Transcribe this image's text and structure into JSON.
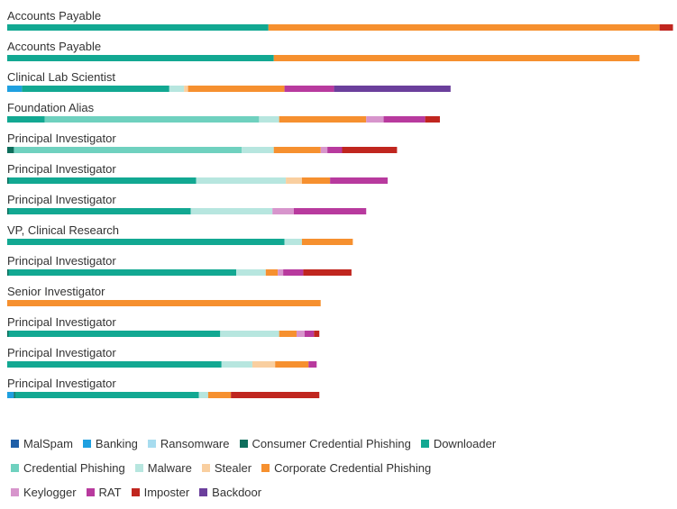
{
  "chart_data": {
    "type": "bar",
    "orientation": "horizontal",
    "stacked": true,
    "title": "",
    "xlabel": "",
    "ylabel": "",
    "xlim": [
      0,
      100
    ],
    "grid": false,
    "legend_position": "bottom",
    "categories": [
      "Accounts Payable",
      "Accounts Payable",
      "Clinical Lab Scientist",
      "Foundation Alias",
      "Principal Investigator",
      "Principal Investigator",
      "Principal Investigator",
      "VP, Clinical Research",
      "Principal Investigator",
      "Senior Investigator",
      "Principal Investigator",
      "Principal Investigator",
      "Principal Investigator"
    ],
    "series": [
      {
        "name": "MalSpam",
        "color": "#1f5fa8",
        "values": [
          0,
          0,
          0,
          0,
          0,
          0,
          0,
          0,
          0,
          0,
          0,
          0,
          0
        ]
      },
      {
        "name": "Banking",
        "color": "#1fa0e0",
        "values": [
          0,
          0,
          2.2,
          0,
          0,
          0,
          0,
          0,
          0,
          0,
          0,
          0,
          1.0
        ]
      },
      {
        "name": "Ransomware",
        "color": "#a7dcef",
        "values": [
          0,
          0,
          0,
          0,
          0,
          0,
          0,
          0,
          0,
          0,
          0,
          0,
          0
        ]
      },
      {
        "name": "Consumer Credential Phishing",
        "color": "#0e6e5c",
        "values": [
          0,
          0,
          0,
          0,
          1.0,
          0.2,
          0.2,
          0,
          0.2,
          0,
          0.2,
          0,
          0.2
        ]
      },
      {
        "name": "Downloader",
        "color": "#12a892",
        "values": [
          39.0,
          39.8,
          22.0,
          5.6,
          0,
          28.0,
          27.2,
          41.4,
          34.0,
          0,
          31.6,
          32.0,
          27.4
        ]
      },
      {
        "name": "Credential Phishing",
        "color": "#6fd1bf",
        "values": [
          0,
          0,
          0,
          32.0,
          34.0,
          0,
          0,
          0,
          0,
          0,
          0,
          0,
          0
        ]
      },
      {
        "name": "Malware",
        "color": "#b7e6df",
        "values": [
          0,
          0,
          2.2,
          3.0,
          4.8,
          13.4,
          12.2,
          2.6,
          4.4,
          0,
          8.8,
          4.6,
          1.4
        ]
      },
      {
        "name": "Stealer",
        "color": "#f9cfa0",
        "values": [
          0,
          0,
          0.6,
          0,
          0,
          2.4,
          0,
          0,
          0,
          0,
          0,
          3.4,
          0
        ]
      },
      {
        "name": "Corporate Credential Phishing",
        "color": "#f6902f",
        "values": [
          58.4,
          54.6,
          14.4,
          13.0,
          7.0,
          4.2,
          0,
          7.6,
          1.8,
          46.8,
          2.6,
          5.0,
          3.4
        ]
      },
      {
        "name": "Keylogger",
        "color": "#d795cc",
        "values": [
          0,
          0,
          0,
          2.6,
          1.0,
          0,
          3.2,
          0,
          0.8,
          0,
          1.2,
          0,
          0
        ]
      },
      {
        "name": "RAT",
        "color": "#b83a9e",
        "values": [
          0,
          0,
          7.4,
          6.2,
          2.2,
          8.6,
          10.8,
          0,
          3.0,
          0,
          1.4,
          1.2,
          0
        ]
      },
      {
        "name": "Imposter",
        "color": "#c0261f",
        "values": [
          2.0,
          0,
          0,
          2.2,
          8.2,
          0,
          0,
          0,
          7.2,
          0,
          0.8,
          0,
          13.2
        ]
      },
      {
        "name": "Backdoor",
        "color": "#6b3f9c",
        "values": [
          0,
          0,
          17.4,
          0,
          0,
          0,
          0,
          0,
          0,
          0,
          0,
          0,
          0
        ]
      }
    ],
    "legend_rows": [
      [
        "MalSpam",
        "Banking",
        "Ransomware",
        "Consumer Credential Phishing",
        "Downloader"
      ],
      [
        "Credential Phishing",
        "Malware",
        "Stealer",
        "Corporate Credential Phishing"
      ],
      [
        "Keylogger",
        "RAT",
        "Imposter",
        "Backdoor"
      ]
    ]
  }
}
